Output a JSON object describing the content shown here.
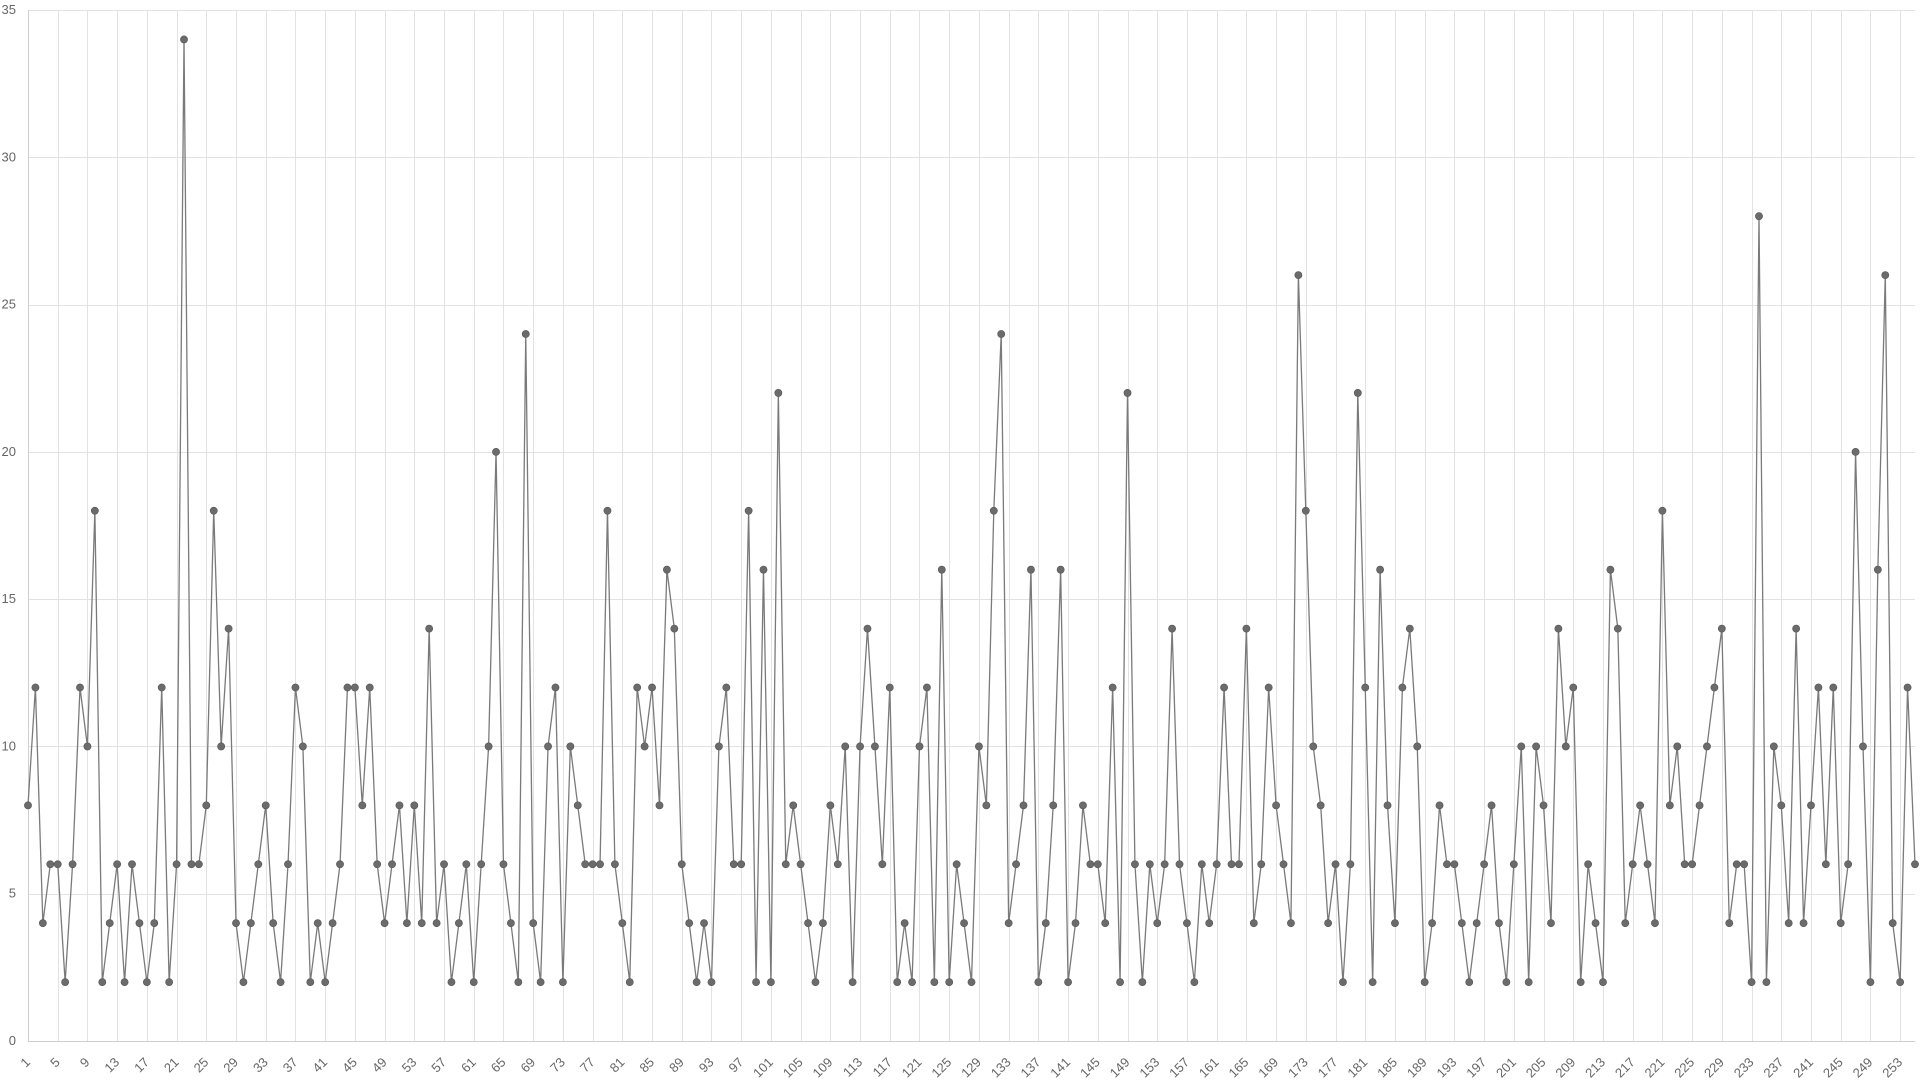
{
  "chart_data": {
    "type": "line",
    "title": "",
    "xlabel": "",
    "ylabel": "",
    "ylim": [
      0,
      35
    ],
    "y_ticks": [
      0,
      5,
      10,
      15,
      20,
      25,
      30,
      35
    ],
    "x_tick_step": 4,
    "grid": true,
    "legend": "none",
    "colors": {
      "line": "#7a7a7a",
      "point": "#6b6b6b",
      "grid": "#e2e2e2",
      "tick_text": "#666666"
    },
    "x_start": 1,
    "series": [
      {
        "values": [
          8,
          12,
          4,
          6,
          6,
          2,
          6,
          12,
          10,
          18,
          2,
          4,
          6,
          2,
          6,
          4,
          2,
          4,
          12,
          2,
          6,
          34,
          6,
          6,
          8,
          18,
          10,
          14,
          4,
          2,
          4,
          6,
          8,
          4,
          2,
          6,
          12,
          10,
          2,
          4,
          2,
          4,
          6,
          12,
          12,
          8,
          12,
          6,
          4,
          6,
          8,
          4,
          8,
          4,
          14,
          4,
          6,
          2,
          4,
          6,
          2,
          6,
          10,
          20,
          6,
          4,
          2,
          24,
          4,
          2,
          10,
          12,
          2,
          10,
          8,
          6,
          6,
          6,
          18,
          6,
          4,
          2,
          12,
          10,
          12,
          8,
          16,
          14,
          6,
          4,
          2,
          4,
          2,
          10,
          12,
          6,
          6,
          18,
          2,
          16,
          2,
          22,
          6,
          8,
          6,
          4,
          2,
          4,
          8,
          6,
          10,
          2,
          10,
          14,
          10,
          6,
          12,
          2,
          4,
          2,
          10,
          12,
          2,
          16,
          2,
          6,
          4,
          2,
          10,
          8,
          18,
          24,
          4,
          6,
          8,
          16,
          2,
          4,
          8,
          16,
          2,
          4,
          8,
          6,
          6,
          4,
          12,
          2,
          22,
          6,
          2,
          6,
          4,
          6,
          14,
          6,
          4,
          2,
          6,
          4,
          6,
          12,
          6,
          6,
          14,
          4,
          6,
          12,
          8,
          6,
          4,
          26,
          18,
          10,
          8,
          4,
          6,
          2,
          6,
          22,
          12,
          2,
          16,
          8,
          4,
          12,
          14,
          10,
          2,
          4,
          8,
          6,
          6,
          4,
          2,
          4,
          6,
          8,
          4,
          2,
          6,
          10,
          2,
          10,
          8,
          4,
          14,
          10,
          12,
          2,
          6,
          4,
          2,
          16,
          14,
          4,
          6,
          8,
          6,
          4,
          18,
          8,
          10,
          6,
          6,
          8,
          10,
          12,
          14,
          4,
          6,
          6,
          2,
          28,
          2,
          10,
          8,
          4,
          14,
          4,
          8,
          12,
          6,
          12,
          4,
          6,
          20,
          10,
          2,
          16,
          26,
          4,
          2,
          12,
          6
        ]
      }
    ]
  }
}
